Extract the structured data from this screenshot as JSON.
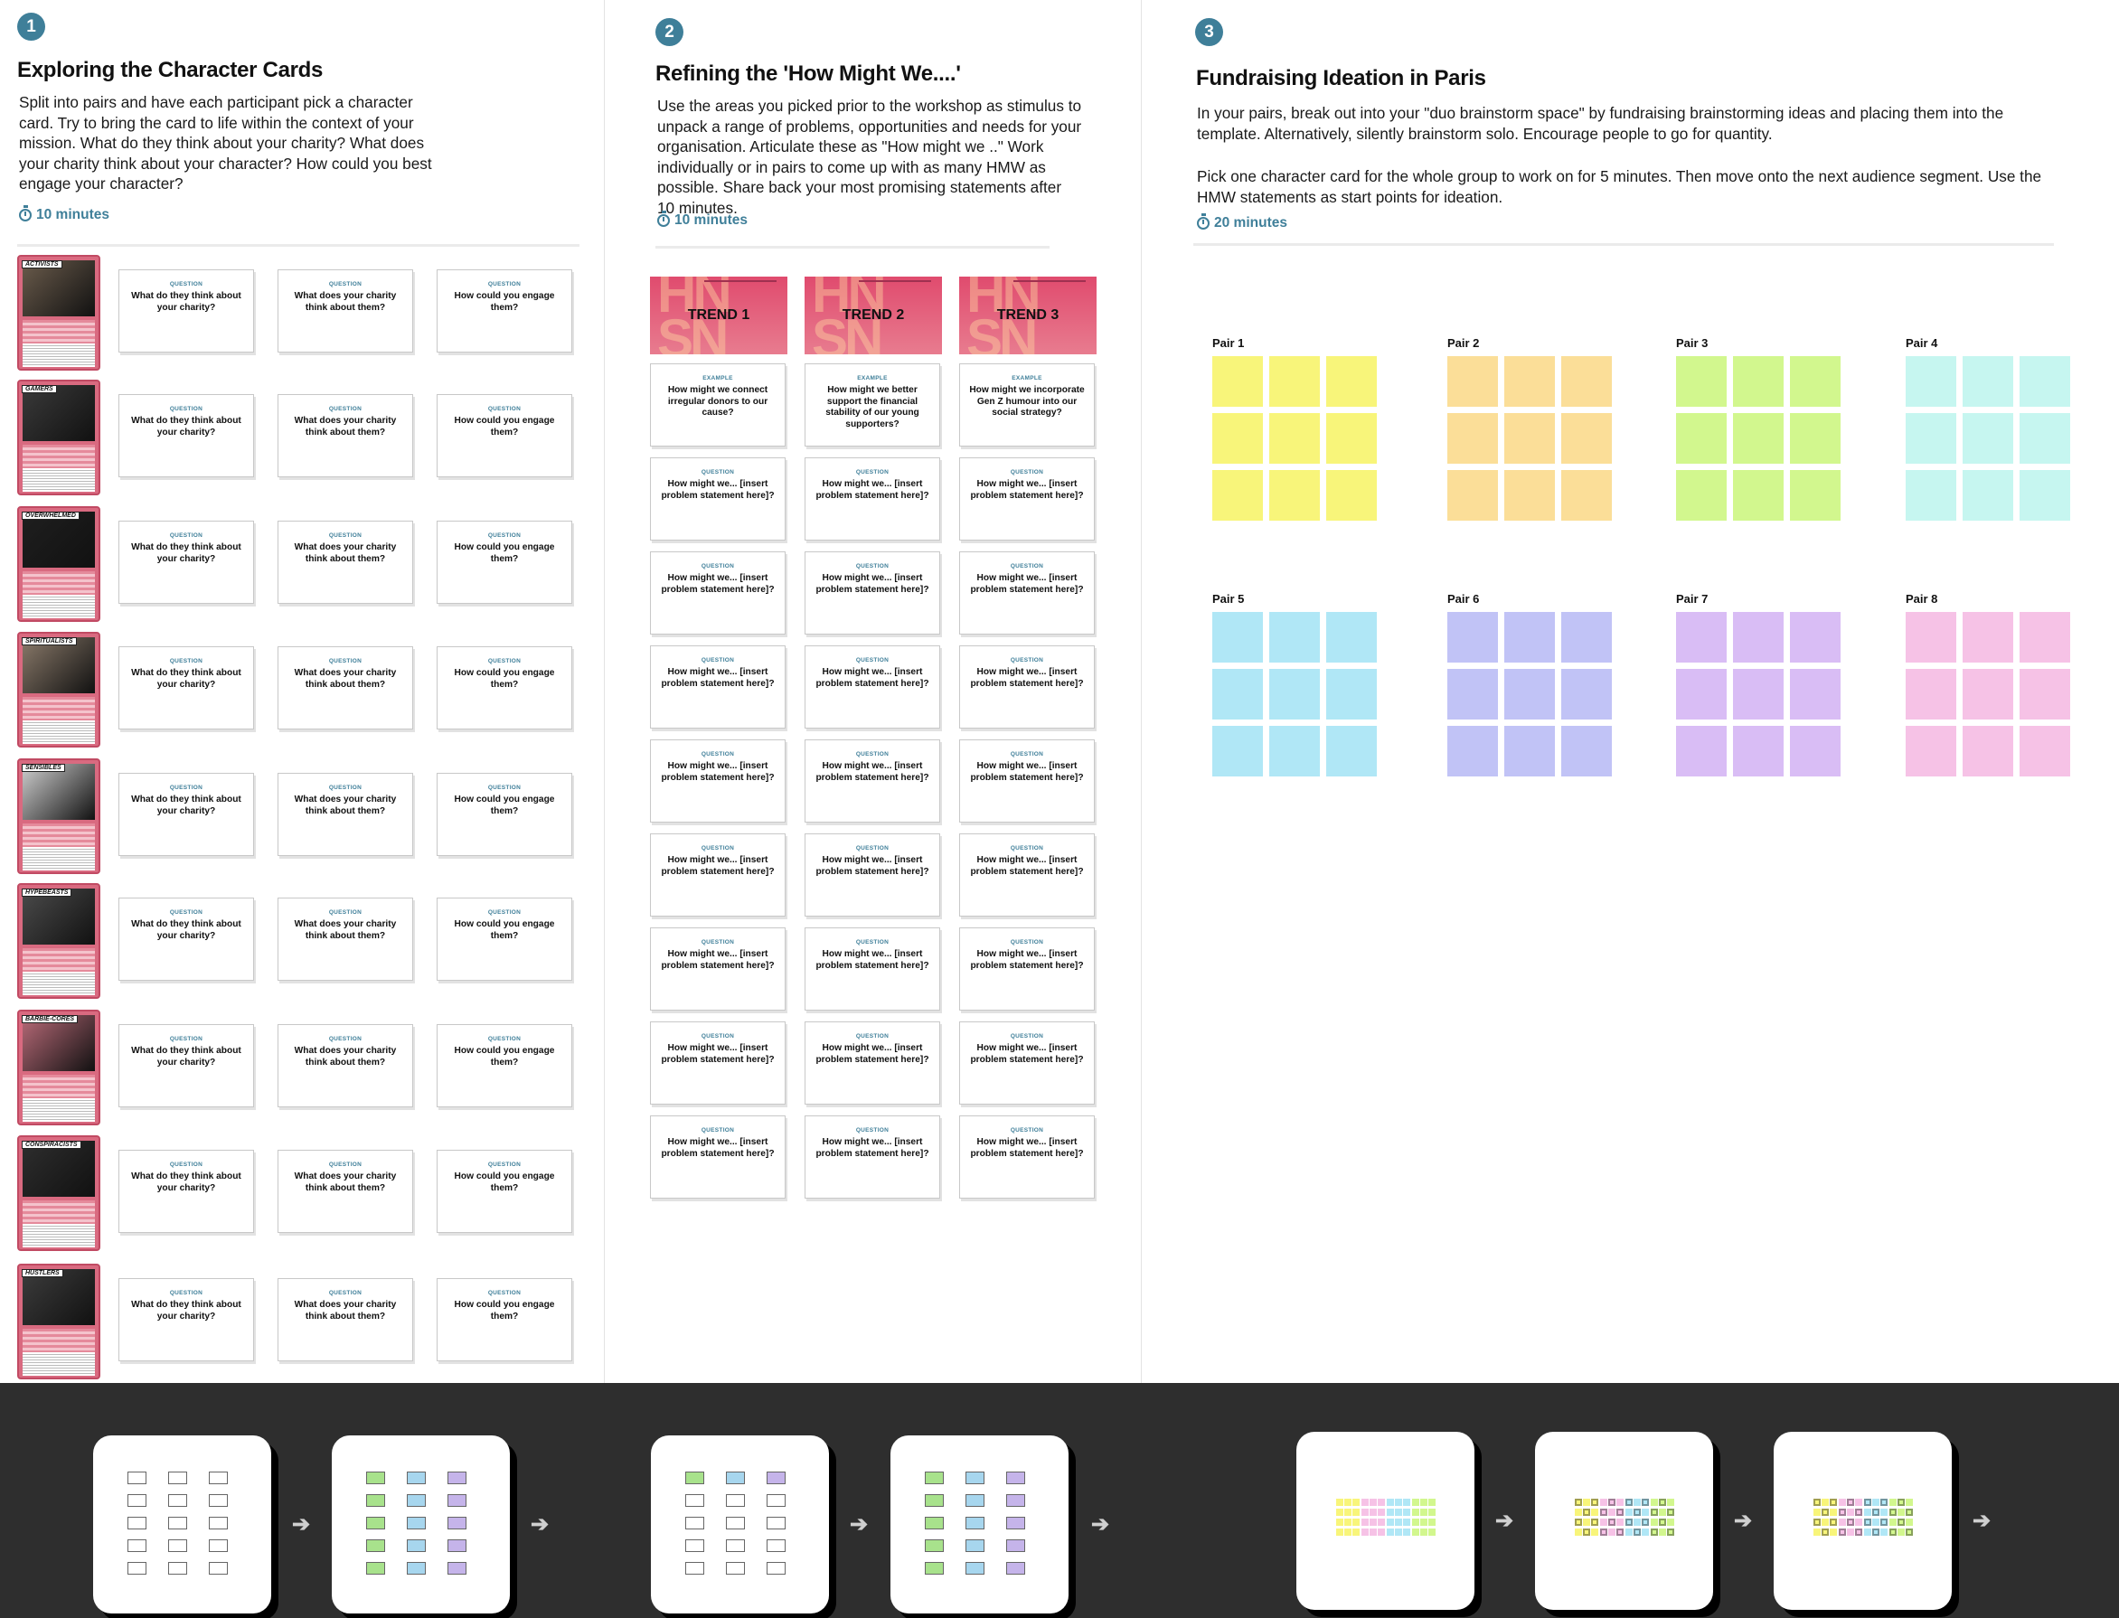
{
  "section1": {
    "number": "1",
    "title": "Exploring the Character Cards",
    "description": "Split into pairs and have each participant pick a character card. Try to bring the card to life within the context of your mission. What do they think about your charity? What does your charity think about your character? How could you best engage your character?",
    "duration": "10 minutes",
    "question_kicker": "QUESTION",
    "questions": [
      "What do they think about your charity?",
      "What does your charity think about them?",
      "How could you engage them?"
    ],
    "characters": [
      "ACTIVISTS",
      "GAMERS",
      "OVERWHELMED",
      "SPIRITUALISTS",
      "SENSIBLES",
      "HYPEBEASTS",
      "BARBIE-CORES",
      "CONSPIRACISTS",
      "HUSTLERS"
    ]
  },
  "section2": {
    "number": "2",
    "title": "Refining the 'How Might We....'",
    "description": "Use the areas you picked prior to the workshop as stimulus to unpack a range of problems, opportunities and needs for your organisation. Articulate these as \"How might we ..\" Work individually or in pairs to come up with as many HMW as possible. Share back your most promising statements after 10 minutes.",
    "duration": "10 minutes",
    "trends": [
      "TREND 1",
      "TREND 2",
      "TREND 3"
    ],
    "example_kicker": "EXAMPLE",
    "examples": [
      "How might we connect irregular donors to our cause?",
      "How might we better support the financial stability of our young supporters?",
      "How might we incorporate Gen Z humour into our social strategy?"
    ],
    "question_kicker": "QUESTION",
    "hmw_prompt": "How might we... [insert problem statement here]?"
  },
  "section3": {
    "number": "3",
    "title": "Fundraising Ideation in Paris",
    "description1": "In your pairs, break out into your \"duo brainstorm space\" by fundraising brainstorming ideas and placing them into the template. Alternatively, silently brainstorm solo. Encourage people to go for quantity.",
    "description2": "Pick one character card for the whole group to work on for 5 minutes. Then move onto the next audience segment. Use the HMW statements as start points for ideation.",
    "duration": "20 minutes",
    "pairs": [
      {
        "label": "Pair 1",
        "color": "#f8f57a"
      },
      {
        "label": "Pair 2",
        "color": "#fbde98"
      },
      {
        "label": "Pair 3",
        "color": "#d2f78e"
      },
      {
        "label": "Pair 4",
        "color": "#c6f6f0"
      },
      {
        "label": "Pair 5",
        "color": "#b0e7f6"
      },
      {
        "label": "Pair 6",
        "color": "#c1c3f6"
      },
      {
        "label": "Pair 7",
        "color": "#d9bdf5"
      },
      {
        "label": "Pair 8",
        "color": "#f6c2e6"
      }
    ]
  },
  "footer": {
    "arrow": "➔"
  },
  "colors": {
    "accent": "#3f7f99",
    "card_pink": "#d96a80",
    "footer_bg": "#2e2e2e"
  }
}
